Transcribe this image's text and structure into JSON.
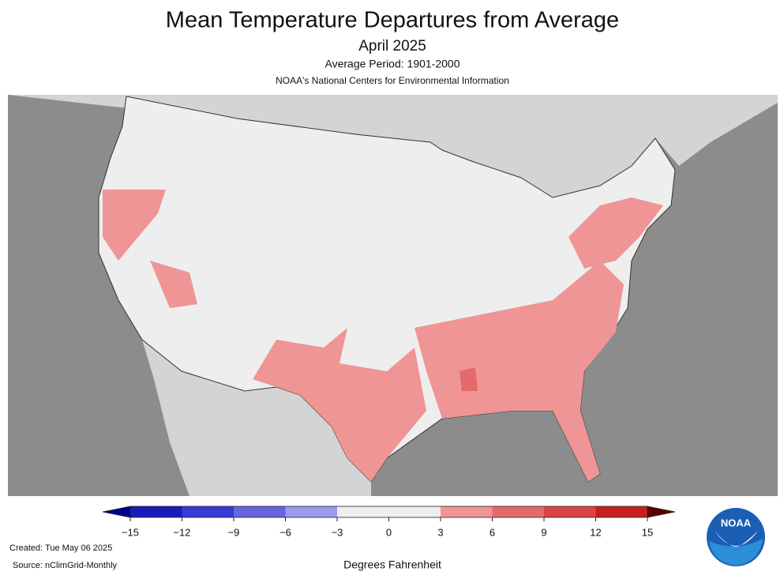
{
  "header": {
    "title": "Mean Temperature Departures from Average",
    "subtitle": "April 2025",
    "period": "Average Period: 1901-2000",
    "organization": "NOAA's National Centers for Environmental Information"
  },
  "colorbar": {
    "label": "Degrees Fahrenheit",
    "range": [
      -15,
      15
    ],
    "ticks": [
      {
        "value": -15,
        "label": "−15"
      },
      {
        "value": -12,
        "label": "−12"
      },
      {
        "value": -9,
        "label": "−9"
      },
      {
        "value": -6,
        "label": "−6"
      },
      {
        "value": -3,
        "label": "−3"
      },
      0,
      3,
      6,
      9,
      12,
      15
    ],
    "colors": [
      "#1a1ab8",
      "#3a3ad6",
      "#6565e0",
      "#9a9aee",
      "#eeeeee",
      "#eeeeee",
      "#ef9595",
      "#e66a6a",
      "#d94545",
      "#c81e1e"
    ],
    "under_color": "#00008b",
    "over_color": "#5a0000"
  },
  "footer": {
    "created": "Created: Tue May 06 2025",
    "source": "Source: nClimGrid-Monthly"
  },
  "logo": {
    "text": "NOAA"
  }
}
